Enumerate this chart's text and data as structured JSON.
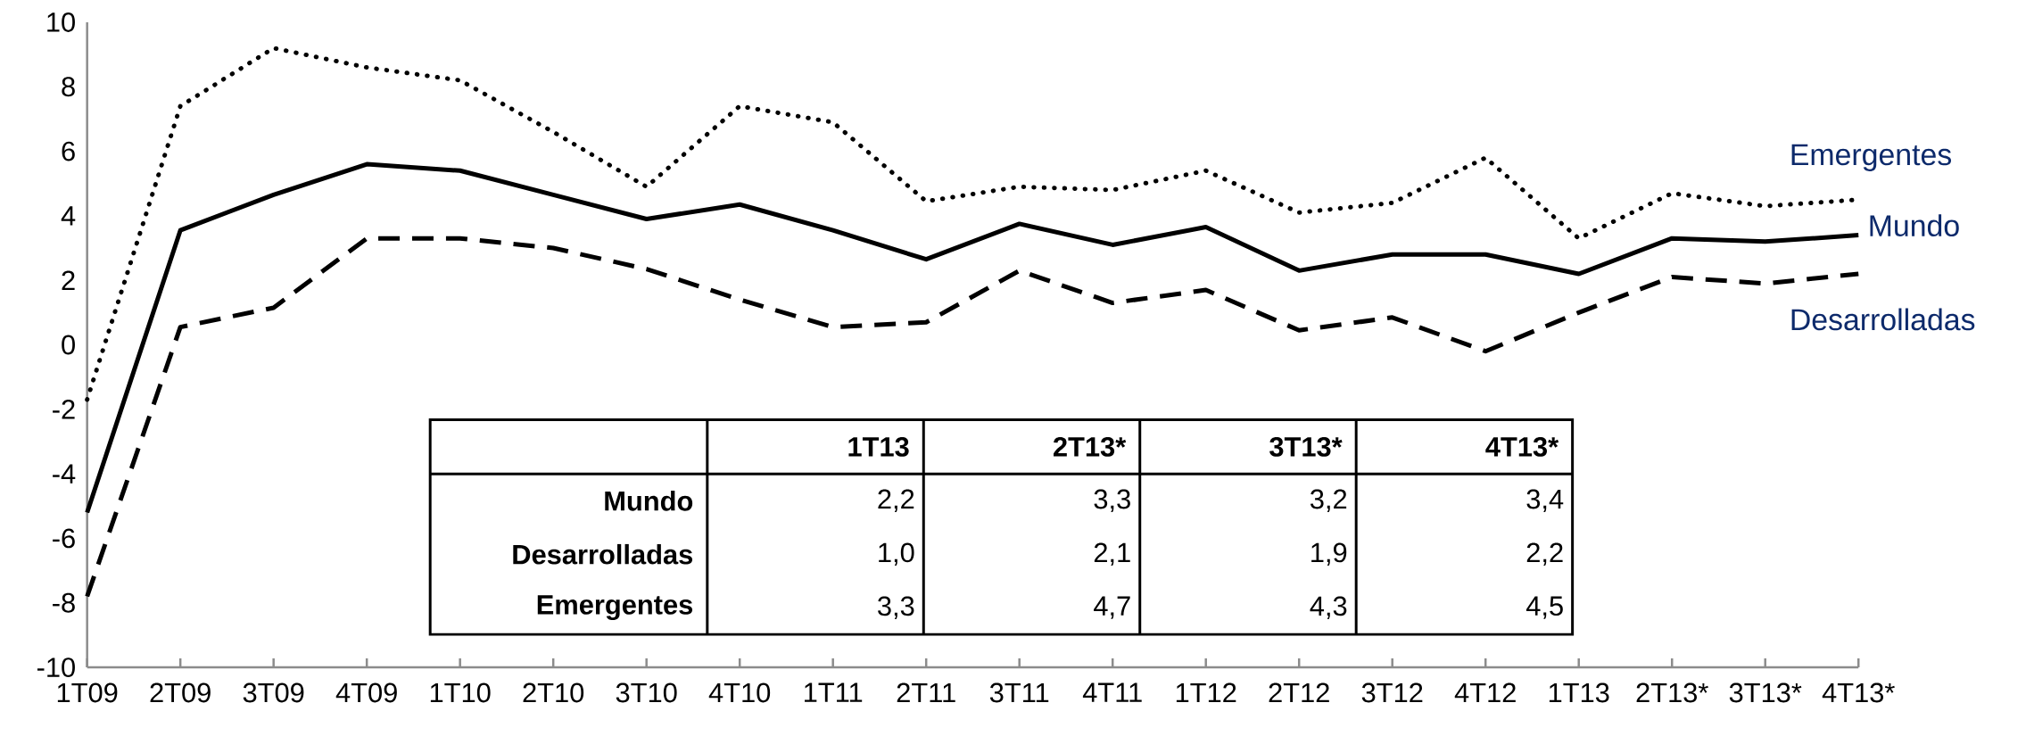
{
  "chart_data": {
    "type": "line",
    "categories": [
      "1T09",
      "2T09",
      "3T09",
      "4T09",
      "1T10",
      "2T10",
      "3T10",
      "4T10",
      "1T11",
      "2T11",
      "3T11",
      "4T11",
      "1T12",
      "2T12",
      "3T12",
      "4T12",
      "1T13",
      "2T13*",
      "3T13*",
      "4T13*"
    ],
    "series": [
      {
        "name": "Mundo",
        "color": "#000000",
        "line_style": "solid",
        "values": [
          -5.2,
          3.55,
          4.65,
          5.6,
          5.4,
          4.65,
          3.9,
          4.35,
          3.55,
          2.65,
          3.75,
          3.1,
          3.65,
          2.3,
          2.8,
          2.8,
          2.2,
          3.3,
          3.2,
          3.4
        ]
      },
      {
        "name": "Desarrolladas",
        "color": "#000000",
        "line_style": "dashed",
        "values": [
          -7.8,
          0.55,
          1.15,
          3.3,
          3.3,
          3.0,
          2.35,
          1.4,
          0.55,
          0.7,
          2.3,
          1.3,
          1.7,
          0.45,
          0.85,
          -0.2,
          1.0,
          2.1,
          1.9,
          2.2
        ]
      },
      {
        "name": "Emergentes",
        "color": "#000000",
        "line_style": "dotted",
        "values": [
          -1.7,
          7.4,
          9.2,
          8.6,
          8.2,
          6.6,
          4.9,
          7.4,
          6.9,
          4.45,
          4.9,
          4.8,
          5.4,
          4.1,
          4.4,
          5.8,
          3.3,
          4.7,
          4.3,
          4.5
        ]
      }
    ],
    "annotations": [
      "2,2",
      "3,3",
      "3,2",
      "3,4",
      "1,0",
      "2,1",
      "1,9",
      "2,2",
      "3,3",
      "4,7",
      "4,3",
      "4,5"
    ],
    "ylim": [
      -10,
      10
    ],
    "yticks": [
      -10,
      -8,
      -6,
      -4,
      -2,
      0,
      2,
      4,
      6,
      8,
      10
    ],
    "grid": false,
    "legend": false,
    "marker": "none"
  }
}
